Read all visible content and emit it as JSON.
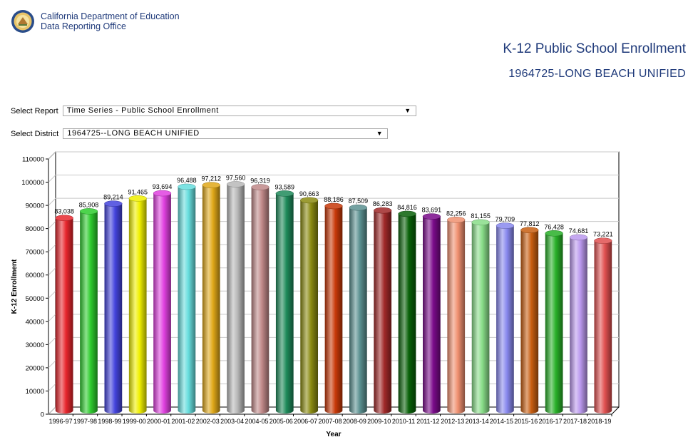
{
  "header": {
    "org_line1": "California Department of Education",
    "org_line2": "Data Reporting Office",
    "seal_icon": "california-seal-icon"
  },
  "title": "K-12 Public School Enrollment",
  "subtitle": "1964725-LONG BEACH UNIFIED",
  "controls": {
    "report_label": "Select Report",
    "report_value": "Time Series - Public School Enrollment",
    "district_label": "Select District",
    "district_value": "1964725--LONG BEACH UNIFIED",
    "dropdown_icon": "triangle-down-icon"
  },
  "chart_data": {
    "type": "bar",
    "title": "",
    "xlabel": "Year",
    "ylabel": "K-12 Enrollment",
    "ylim": [
      0,
      110000
    ],
    "yticks": [
      0,
      10000,
      20000,
      30000,
      40000,
      50000,
      60000,
      70000,
      80000,
      90000,
      100000,
      110000
    ],
    "grid": true,
    "categories": [
      "1996-97",
      "1997-98",
      "1998-99",
      "1999-00",
      "2000-01",
      "2001-02",
      "2002-03",
      "2003-04",
      "2004-05",
      "2005-06",
      "2006-07",
      "2007-08",
      "2008-09",
      "2009-10",
      "2010-11",
      "2011-12",
      "2012-13",
      "2013-14",
      "2014-15",
      "2015-16",
      "2016-17",
      "2017-18",
      "2018-19"
    ],
    "values": [
      83038,
      85908,
      89214,
      91465,
      93694,
      96488,
      97212,
      97560,
      96319,
      93589,
      90663,
      88186,
      87509,
      86283,
      84816,
      83691,
      82256,
      81155,
      79709,
      77812,
      76428,
      74681,
      73221
    ],
    "data_labels": [
      "83,038",
      "85,908",
      "89,214",
      "91,465",
      "93,694",
      "96,488",
      "97,212",
      "97,560",
      "96,319",
      "93,589",
      "90,663",
      "88,186",
      "87,509",
      "86,283",
      "84,816",
      "83,691",
      "82,256",
      "81,155",
      "79,709",
      "77,812",
      "76,428",
      "74,681",
      "73,221"
    ],
    "colors": [
      "#e8262d",
      "#2ecc2e",
      "#4444dd",
      "#f0f000",
      "#e040e0",
      "#66dddd",
      "#e0a818",
      "#b8b8b8",
      "#c08888",
      "#1e8a5a",
      "#8a8a10",
      "#c83808",
      "#5a9090",
      "#a02828",
      "#086008",
      "#7a0a8a",
      "#f09070",
      "#88dd88",
      "#8888ee",
      "#c85e10",
      "#28b028",
      "#bb99ee",
      "#e05050"
    ]
  }
}
